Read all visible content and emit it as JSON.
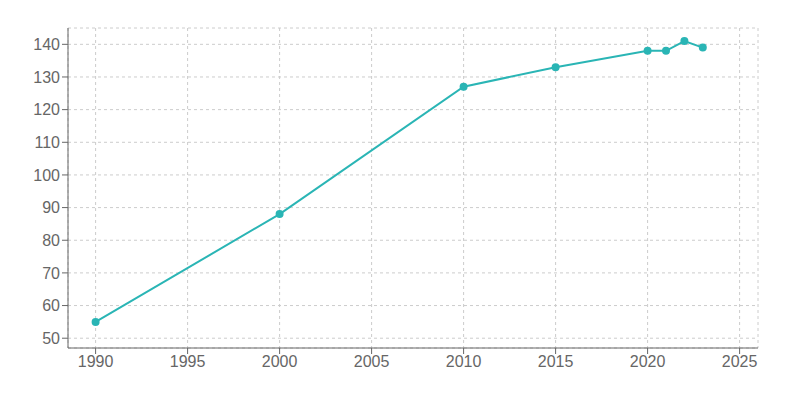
{
  "chart_data": {
    "type": "line",
    "x": [
      1990,
      2000,
      2010,
      2015,
      2020,
      2021,
      2022,
      2023
    ],
    "values": [
      55,
      88,
      127,
      133,
      138,
      138,
      141,
      139
    ],
    "color": "#2ab5b5",
    "marker": "circle",
    "xlim": [
      1988.5,
      2026
    ],
    "ylim": [
      47,
      145
    ],
    "xticks": [
      1990,
      1995,
      2000,
      2005,
      2010,
      2015,
      2020,
      2025
    ],
    "yticks": [
      50,
      60,
      70,
      80,
      90,
      100,
      110,
      120,
      130,
      140
    ],
    "grid": true
  }
}
